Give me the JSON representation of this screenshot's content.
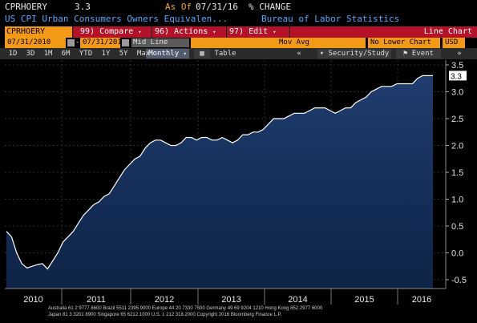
{
  "header": {
    "ticker": "CPRHOERY",
    "value": "3.3",
    "as_of_label": "As Of",
    "as_of_date": "07/31/16",
    "change_label": "% CHANGE",
    "description": "US CPI Urban Consumers Owners Equivalen...",
    "source": "Bureau of Labor Statistics"
  },
  "toolbar": {
    "ticker_input": "CPRHOERY Index",
    "compare_num": "99)",
    "compare_label": "Compare",
    "actions_num": "96)",
    "actions_label": "Actions",
    "edit_num": "97)",
    "edit_label": "Edit",
    "chart_type": "Line Chart"
  },
  "range": {
    "start": "07/31/2010",
    "end": "07/31/2016",
    "line_mode": "Mid Line",
    "study": "Mov Avg",
    "lower_chart": "No Lower Chart",
    "currency": "USD"
  },
  "periods": [
    "1D",
    "3D",
    "1M",
    "6M",
    "YTD",
    "1Y",
    "5Y",
    "Max"
  ],
  "period_select": "Monthly",
  "table_label": "Table",
  "security_study": "Security/Study",
  "event_label": "Event",
  "chart_data": {
    "type": "area",
    "title": "",
    "xlabel": "",
    "ylabel": "",
    "ylim": [
      -0.5,
      3.5
    ],
    "yticks": [
      "3.5",
      "3.0",
      "2.5",
      "2.0",
      "1.5",
      "1.0",
      "0.5",
      "0.0",
      "-0.5"
    ],
    "ytick_values": [
      3.5,
      3.0,
      2.5,
      2.0,
      1.5,
      1.0,
      0.5,
      0.0,
      -0.5
    ],
    "xtick_labels": [
      "2010",
      "2011",
      "2012",
      "2013",
      "2014",
      "2015",
      "2016"
    ],
    "last_value_label": "3.3",
    "series": [
      {
        "values": [
          0.4,
          0.3,
          0.0,
          -0.2,
          -0.28,
          -0.25,
          -0.22,
          -0.2,
          -0.3,
          -0.15,
          0.0,
          0.2,
          0.3,
          0.4,
          0.55,
          0.7,
          0.8,
          0.9,
          0.95,
          1.05,
          1.1,
          1.25,
          1.4,
          1.55,
          1.65,
          1.75,
          1.8,
          1.95,
          2.05,
          2.1,
          2.1,
          2.05,
          2.0,
          2.0,
          2.05,
          2.15,
          2.15,
          2.1,
          2.15,
          2.15,
          2.1,
          2.1,
          2.15,
          2.1,
          2.05,
          2.1,
          2.2,
          2.2,
          2.25,
          2.25,
          2.3,
          2.4,
          2.5,
          2.5,
          2.5,
          2.55,
          2.6,
          2.6,
          2.6,
          2.65,
          2.7,
          2.7,
          2.7,
          2.65,
          2.6,
          2.65,
          2.7,
          2.7,
          2.8,
          2.85,
          2.9,
          3.0,
          3.05,
          3.1,
          3.1,
          3.1,
          3.15,
          3.15,
          3.15,
          3.15,
          3.25,
          3.3,
          3.3,
          3.3
        ]
      }
    ],
    "colors": {
      "line": "#ffffff",
      "fill_top": "#1f3d6e",
      "fill_bottom": "#0e2347",
      "axis_box": "#f29a16"
    }
  },
  "footer": {
    "line1": "Australia 61 2 9777 8600 Brazil 5511 2395 9000 Europe 44 20 7330 7500 Germany 49 69 9204 1210 Hong Kong 852 2977 6000",
    "line2": "Japan 81 3 3201 8900        Singapore 65 6212 1000        U.S. 1 212 318 2000        Copyright 2016 Bloomberg Finance L.P."
  }
}
